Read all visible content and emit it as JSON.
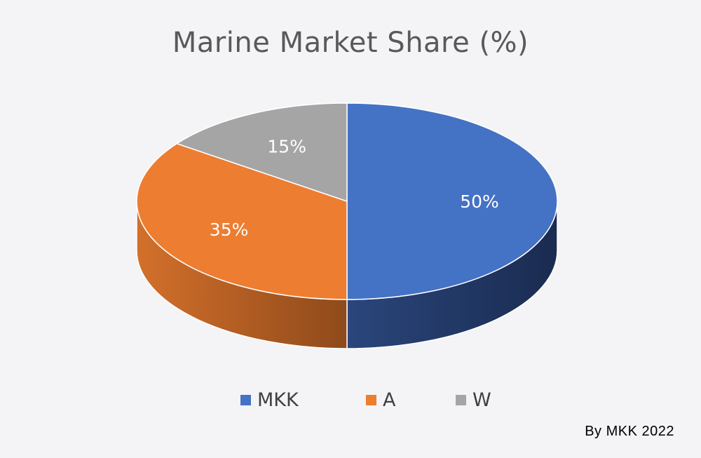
{
  "chart_data": {
    "type": "pie",
    "title": "Marine Market Share (%)",
    "categories": [
      "MKK",
      "A",
      "W"
    ],
    "values": [
      50,
      35,
      15
    ],
    "data_labels": [
      "50%",
      "35%",
      "15%"
    ],
    "colors": [
      "#4472c4",
      "#ed7d31",
      "#a5a5a5"
    ],
    "legend_position": "bottom",
    "style": "3d"
  },
  "credit": "By MKK 2022"
}
